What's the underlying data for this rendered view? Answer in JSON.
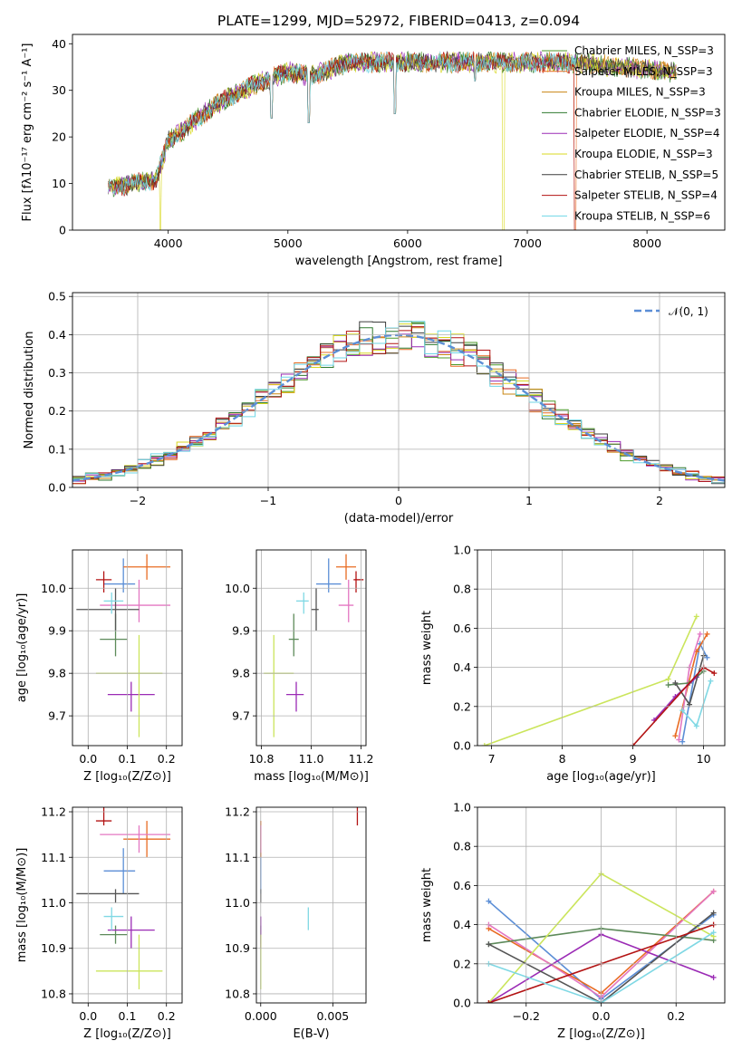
{
  "title": "PLATE=1299, MJD=52972, FIBERID=0413, z=0.094",
  "colors": {
    "chabrier_miles": "#4c9a2a",
    "salpeter_miles": "#e86b22",
    "kroupa_miles": "#c98512",
    "chabrier_elodie": "#2f7a2f",
    "salpeter_elodie": "#9b2bb5",
    "kroupa_elodie": "#d8d820",
    "chabrier_stelib": "#3c3c3c",
    "salpeter_stelib": "#b31313",
    "kroupa_stelib": "#6fd6e6",
    "gauss": "#5b8ed6"
  },
  "chart_data": [
    {
      "type": "line",
      "xlabel": "wavelength [Angstrom, rest frame]",
      "ylabel": "Flux [fλ10⁻¹⁷ erg cm⁻² s⁻¹ A⁻¹]",
      "xlim": [
        3200,
        8650
      ],
      "ylim": [
        0,
        42
      ],
      "xticks": [
        "4000",
        "5000",
        "6000",
        "7000",
        "8000"
      ],
      "yticks": [
        "0",
        "10",
        "20",
        "30",
        "40"
      ],
      "legend_position": "top-right",
      "legend": [
        "Chabrier MILES, N_SSP=3",
        "Salpeter MILES, N_SSP=3",
        "Kroupa MILES, N_SSP=3",
        "Chabrier ELODIE, N_SSP=3",
        "Salpeter ELODIE, N_SSP=4",
        "Kroupa ELODIE, N_SSP=3",
        "Chabrier STELIB, N_SSP=5",
        "Salpeter STELIB, N_SSP=4",
        "Kroupa STELIB, N_SSP=6"
      ],
      "continuum": {
        "x": [
          3500,
          3700,
          3900,
          4000,
          4200,
          4400,
          4700,
          5000,
          5200,
          5500,
          5900,
          6300,
          6700,
          7000,
          7400,
          7800,
          8200
        ],
        "y": [
          9,
          10,
          11,
          19,
          23,
          27,
          31,
          34,
          33,
          36,
          36,
          36,
          36,
          36,
          36,
          35,
          34
        ]
      },
      "absorption_dips": [
        {
          "x": 3934,
          "y": 0
        },
        {
          "x": 4861,
          "y": 24
        },
        {
          "x": 5175,
          "y": 23
        },
        {
          "x": 5893,
          "y": 25
        },
        {
          "x": 6563,
          "y": 32
        },
        {
          "x": 6800,
          "y": 0
        },
        {
          "x": 7400,
          "y": 0
        }
      ]
    },
    {
      "type": "line",
      "xlabel": "(data-model)/error",
      "ylabel": "Normed distribution",
      "xlim": [
        -2.5,
        2.5
      ],
      "ylim": [
        0,
        0.51
      ],
      "xticks": [
        "−2",
        "−1",
        "0",
        "1",
        "2"
      ],
      "yticks": [
        "0.0",
        "0.1",
        "0.2",
        "0.3",
        "0.4",
        "0.5"
      ],
      "legend": [
        "𝒩(0, 1)"
      ],
      "legend_position": "top-right",
      "gaussian": {
        "mu": 0,
        "sigma": 1
      },
      "histogram_step": 0.1,
      "histogram_range": [
        -2.5,
        2.5
      ]
    },
    {
      "type": "scatter",
      "xlabel": "Z [log₁₀(Z/Z⊙)]",
      "ylabel": "age  [log₁₀(age/yr)]",
      "xlim": [
        -0.04,
        0.24
      ],
      "ylim": [
        9.63,
        10.09
      ],
      "xticks": [
        "0.0",
        "0.1",
        "0.2"
      ],
      "yticks": [
        "9.7",
        "9.8",
        "9.9",
        "10.0"
      ]
    },
    {
      "type": "scatter",
      "xlabel": "mass [log₁₀(M/M⊙)]",
      "xlim": [
        10.78,
        11.22
      ],
      "ylim": [
        9.63,
        10.09
      ],
      "xticks": [
        "10.8",
        "11.0",
        "11.2"
      ],
      "yticks": [
        "9.7",
        "9.8",
        "9.9",
        "10.0"
      ]
    },
    {
      "type": "line",
      "xlabel": "age  [log₁₀(age/yr)]",
      "ylabel": "mass weight",
      "xlim": [
        6.8,
        10.3
      ],
      "ylim": [
        0,
        1
      ],
      "xticks": [
        "7",
        "8",
        "9",
        "10"
      ],
      "yticks": [
        "0.0",
        "0.2",
        "0.4",
        "0.6",
        "0.8",
        "1.0"
      ]
    },
    {
      "type": "scatter",
      "xlabel": "Z [log₁₀(Z/Z⊙)]",
      "ylabel": "mass [log₁₀(M/M⊙)]",
      "xlim": [
        -0.04,
        0.24
      ],
      "ylim": [
        10.78,
        11.21
      ],
      "xticks": [
        "0.0",
        "0.1",
        "0.2"
      ],
      "yticks": [
        "10.8",
        "10.9",
        "11.0",
        "11.1",
        "11.2"
      ]
    },
    {
      "type": "scatter",
      "xlabel": "E(B-V)",
      "xlim": [
        -0.0003,
        0.0073
      ],
      "ylim": [
        10.78,
        11.21
      ],
      "xticks": [
        "0.000",
        "0.005"
      ],
      "yticks": [
        "10.8",
        "10.9",
        "11.0",
        "11.1",
        "11.2"
      ]
    },
    {
      "type": "line",
      "xlabel": "Z [log₁₀(Z/Z⊙)]",
      "ylabel": "mass weight",
      "xlim": [
        -0.33,
        0.33
      ],
      "ylim": [
        0,
        1
      ],
      "xticks": [
        "−0.2",
        "0.0",
        "0.2"
      ],
      "yticks": [
        "0.0",
        "0.2",
        "0.4",
        "0.6",
        "0.8",
        "1.0"
      ]
    }
  ],
  "fits": [
    {
      "name": "Chabrier MILES",
      "color": "#5b8ed6",
      "age": 10.01,
      "age_err": [
        0.02,
        0.06
      ],
      "Z": 0.09,
      "Z_err": [
        0.05,
        0.03
      ],
      "mass": 11.07,
      "mass_err": [
        0.05,
        0.05
      ],
      "ebv": 0.0,
      "m_err": 0.03,
      "mw_age": [
        [
          9.95,
          0.52
        ],
        [
          10.05,
          0.45
        ],
        [
          9.7,
          0.02
        ]
      ],
      "mw_z": [
        [
          -0.3,
          0.52
        ],
        [
          0.3,
          0.45
        ],
        [
          0.0,
          0.02
        ]
      ]
    },
    {
      "name": "Salpeter MILES",
      "color": "#e86b22",
      "age": 10.05,
      "age_err": [
        0.03,
        0.03
      ],
      "Z": 0.15,
      "Z_err": [
        0.06,
        0.06
      ],
      "mass": 11.14,
      "mass_err": [
        0.04,
        0.04
      ],
      "ebv": 0.0,
      "m_err": 0.03,
      "mw_age": [
        [
          10.05,
          0.57
        ],
        [
          9.9,
          0.48
        ],
        [
          9.6,
          0.05
        ]
      ],
      "mw_z": [
        [
          0.3,
          0.57
        ],
        [
          -0.3,
          0.38
        ],
        [
          0.0,
          0.05
        ]
      ]
    },
    {
      "name": "Kroupa MILES",
      "color": "#e377c2",
      "age": 9.96,
      "age_err": [
        0.04,
        0.06
      ],
      "Z": 0.13,
      "Z_err": [
        0.1,
        0.08
      ],
      "mass": 11.15,
      "mass_err": [
        0.04,
        0.02
      ],
      "ebv": 0.0,
      "m_err": 0.03,
      "mw_age": [
        [
          9.95,
          0.57
        ],
        [
          9.8,
          0.4
        ],
        [
          9.65,
          0.03
        ]
      ],
      "mw_z": [
        [
          0.3,
          0.57
        ],
        [
          -0.3,
          0.4
        ],
        [
          0.0,
          0.03
        ]
      ]
    },
    {
      "name": "Chabrier ELODIE",
      "color": "#5d8a5a",
      "age": 9.88,
      "age_err": [
        0.04,
        0.06
      ],
      "Z": 0.07,
      "Z_err": [
        0.04,
        0.03
      ],
      "mass": 10.93,
      "mass_err": [
        0.02,
        0.02
      ],
      "ebv": 0.0,
      "m_err": 0.03,
      "mw_age": [
        [
          9.5,
          0.31
        ],
        [
          10.0,
          0.38
        ],
        [
          9.8,
          0.32
        ]
      ],
      "mw_z": [
        [
          -0.3,
          0.3
        ],
        [
          0.0,
          0.38
        ],
        [
          0.3,
          0.32
        ]
      ]
    },
    {
      "name": "Salpeter ELODIE",
      "color": "#9b2bb5",
      "age": 9.75,
      "age_err": [
        0.04,
        0.03
      ],
      "Z": 0.11,
      "Z_err": [
        0.06,
        0.06
      ],
      "mass": 10.94,
      "mass_err": [
        0.04,
        0.03
      ],
      "ebv": 0.0,
      "m_err": 0.03,
      "mw_age": [
        [
          9.3,
          0.13
        ],
        [
          9.9,
          0.35
        ],
        [
          9.6,
          0.25
        ]
      ],
      "mw_z": [
        [
          0.0,
          0.35
        ],
        [
          0.3,
          0.13
        ],
        [
          -0.3,
          0.0
        ]
      ]
    },
    {
      "name": "Kroupa ELODIE",
      "color": "#cbe55c",
      "age": 9.8,
      "age_err": [
        0.15,
        0.09
      ],
      "Z": 0.13,
      "Z_err": [
        0.11,
        0.06
      ],
      "mass": 10.85,
      "mass_err": [
        0.04,
        0.08
      ],
      "ebv": 0.0,
      "m_err": 0.08,
      "mw_age": [
        [
          6.9,
          0.0
        ],
        [
          9.5,
          0.34
        ],
        [
          9.9,
          0.66
        ]
      ],
      "mw_z": [
        [
          0.0,
          0.66
        ],
        [
          0.3,
          0.34
        ],
        [
          -0.3,
          0.0
        ]
      ]
    },
    {
      "name": "Chabrier STELIB",
      "color": "#555555",
      "age": 9.95,
      "age_err": [
        0.05,
        0.05
      ],
      "Z": 0.07,
      "Z_err": [
        0.1,
        0.06
      ],
      "mass": 11.02,
      "mass_err": [
        0.02,
        0.01
      ],
      "ebv": 0.0,
      "m_err": 0.03,
      "mw_age": [
        [
          9.6,
          0.32
        ],
        [
          10.0,
          0.46
        ],
        [
          9.8,
          0.21
        ]
      ],
      "mw_z": [
        [
          -0.3,
          0.3
        ],
        [
          0.0,
          0.0
        ],
        [
          0.3,
          0.46
        ]
      ]
    },
    {
      "name": "Salpeter STELIB",
      "color": "#b31313",
      "age": 10.02,
      "age_err": [
        0.03,
        0.02
      ],
      "Z": 0.04,
      "Z_err": [
        0.02,
        0.02
      ],
      "mass": 11.18,
      "mass_err": [
        0.01,
        0.03
      ],
      "ebv": 0.0067,
      "m_err": 0.03,
      "mw_age": [
        [
          9.0,
          0.0
        ],
        [
          10.0,
          0.4
        ],
        [
          10.15,
          0.37
        ]
      ],
      "mw_z": [
        [
          -0.3,
          0.0
        ],
        [
          0.0,
          0.2
        ],
        [
          0.3,
          0.4
        ]
      ]
    },
    {
      "name": "Kroupa STELIB",
      "color": "#7fd8e4",
      "age": 9.97,
      "age_err": [
        0.03,
        0.02
      ],
      "Z": 0.06,
      "Z_err": [
        0.02,
        0.03
      ],
      "mass": 10.97,
      "mass_err": [
        0.03,
        0.02
      ],
      "ebv": 0.0033,
      "m_err": 0.03,
      "mw_age": [
        [
          9.7,
          0.18
        ],
        [
          10.1,
          0.33
        ],
        [
          9.9,
          0.1
        ]
      ],
      "mw_z": [
        [
          -0.3,
          0.2
        ],
        [
          0.0,
          0.0
        ],
        [
          0.3,
          0.36
        ]
      ]
    }
  ]
}
